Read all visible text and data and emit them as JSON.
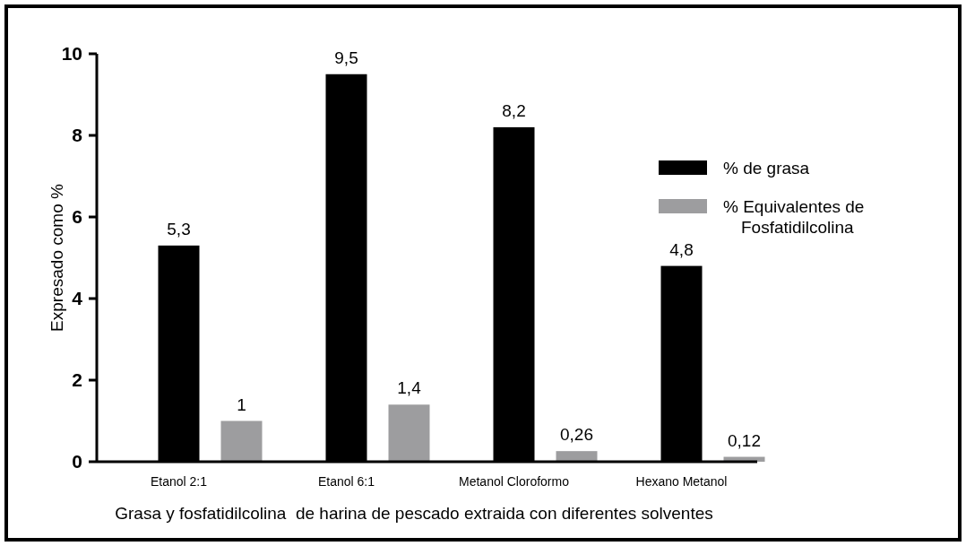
{
  "chart_data": {
    "type": "bar",
    "xlabel": "Grasa y fosfatidilcolina  de harina de pescado extraida con diferentes solventes",
    "ylabel": "Expresado como %",
    "categories": [
      "Etanol 2:1",
      "Etanol 6:1",
      "Metanol Cloroformo",
      "Hexano Metanol"
    ],
    "series": [
      {
        "name": "% de grasa",
        "color": "#000000",
        "values": [
          5.3,
          9.5,
          8.2,
          4.8
        ],
        "value_labels": [
          "5,3",
          "9,5",
          "8,2",
          "4,8"
        ]
      },
      {
        "name": "% Equivalentes de Fosfatidilcolina",
        "color": "#9d9d9f",
        "values": [
          1,
          1.4,
          0.26,
          0.12
        ],
        "value_labels": [
          "1",
          "1,4",
          "0,26",
          "0,12"
        ]
      }
    ],
    "ylim": [
      0,
      10
    ],
    "yticks": [
      0,
      2,
      4,
      6,
      8,
      10
    ],
    "grid": false,
    "legend": "right"
  }
}
